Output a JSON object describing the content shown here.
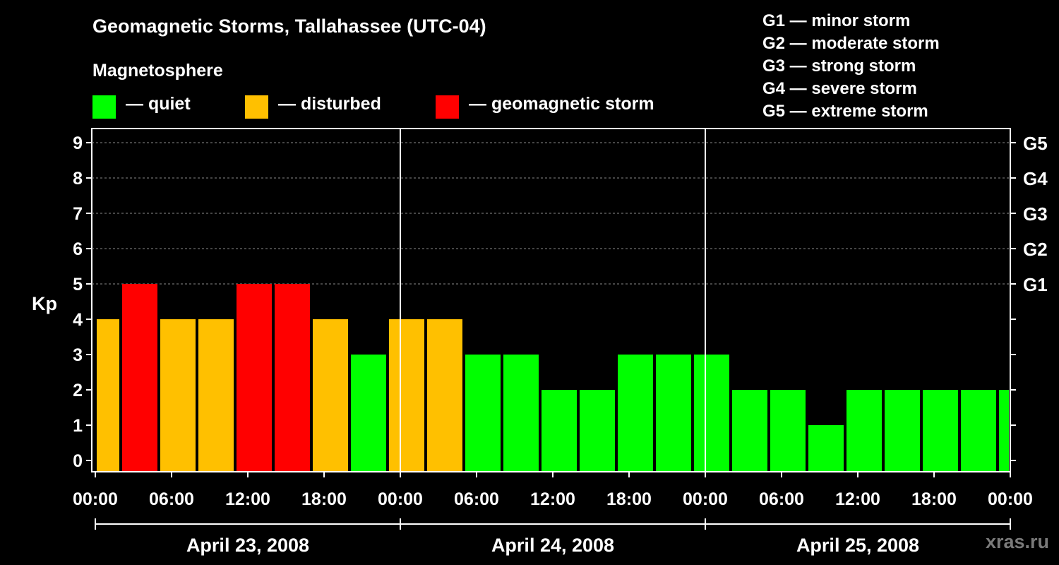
{
  "header": {
    "title": "Geomagnetic Storms, Tallahassee (UTC-04)",
    "subtitle": "Magnetosphere"
  },
  "legend": [
    {
      "label": "— quiet",
      "color": "#00ff00"
    },
    {
      "label": "— disturbed",
      "color": "#ffc000"
    },
    {
      "label": "— geomagnetic storm",
      "color": "#ff0000"
    }
  ],
  "g_legend": [
    "G1 — minor storm",
    "G2 — moderate storm",
    "G3 — strong storm",
    "G4 — severe storm",
    "G5 — extreme storm"
  ],
  "credit": "xras.ru",
  "chart_data": {
    "type": "bar",
    "title": "Geomagnetic Storms, Tallahassee (UTC-04)",
    "ylabel": "Kp",
    "ylim": [
      0,
      9
    ],
    "y_ticks": [
      "0",
      "1",
      "2",
      "3",
      "4",
      "5",
      "6",
      "7",
      "8",
      "9"
    ],
    "right_ticks": [
      {
        "kp": 5,
        "label": "G1"
      },
      {
        "kp": 6,
        "label": "G2"
      },
      {
        "kp": 7,
        "label": "G3"
      },
      {
        "kp": 8,
        "label": "G4"
      },
      {
        "kp": 9,
        "label": "G5"
      }
    ],
    "x_tick_labels": [
      "00:00",
      "06:00",
      "12:00",
      "18:00",
      "00:00",
      "06:00",
      "12:00",
      "18:00",
      "00:00",
      "06:00",
      "12:00",
      "18:00",
      "00:00"
    ],
    "day_labels": [
      "April 23, 2008",
      "April 24, 2008",
      "April 25, 2008"
    ],
    "grid": true,
    "colors": {
      "quiet": "#00ff00",
      "disturbed": "#ffc000",
      "storm": "#ff0000"
    },
    "bars": [
      {
        "start": "April 23, 2008 00:00",
        "end": "April 23, 2008 02:00",
        "kp": 4
      },
      {
        "start": "April 23, 2008 02:00",
        "end": "April 23, 2008 05:00",
        "kp": 5
      },
      {
        "start": "April 23, 2008 05:00",
        "end": "April 23, 2008 08:00",
        "kp": 4
      },
      {
        "start": "April 23, 2008 08:00",
        "end": "April 23, 2008 11:00",
        "kp": 4
      },
      {
        "start": "April 23, 2008 11:00",
        "end": "April 23, 2008 14:00",
        "kp": 5
      },
      {
        "start": "April 23, 2008 14:00",
        "end": "April 23, 2008 17:00",
        "kp": 5
      },
      {
        "start": "April 23, 2008 17:00",
        "end": "April 23, 2008 20:00",
        "kp": 4
      },
      {
        "start": "April 23, 2008 20:00",
        "end": "April 23, 2008 23:00",
        "kp": 3
      },
      {
        "start": "April 23, 2008 23:00",
        "end": "April 24, 2008 02:00",
        "kp": 4
      },
      {
        "start": "April 24, 2008 02:00",
        "end": "April 24, 2008 05:00",
        "kp": 4
      },
      {
        "start": "April 24, 2008 05:00",
        "end": "April 24, 2008 08:00",
        "kp": 3
      },
      {
        "start": "April 24, 2008 08:00",
        "end": "April 24, 2008 11:00",
        "kp": 3
      },
      {
        "start": "April 24, 2008 11:00",
        "end": "April 24, 2008 14:00",
        "kp": 2
      },
      {
        "start": "April 24, 2008 14:00",
        "end": "April 24, 2008 17:00",
        "kp": 2
      },
      {
        "start": "April 24, 2008 17:00",
        "end": "April 24, 2008 20:00",
        "kp": 3
      },
      {
        "start": "April 24, 2008 20:00",
        "end": "April 24, 2008 23:00",
        "kp": 3
      },
      {
        "start": "April 24, 2008 23:00",
        "end": "April 25, 2008 02:00",
        "kp": 3
      },
      {
        "start": "April 25, 2008 02:00",
        "end": "April 25, 2008 05:00",
        "kp": 2
      },
      {
        "start": "April 25, 2008 05:00",
        "end": "April 25, 2008 08:00",
        "kp": 2
      },
      {
        "start": "April 25, 2008 08:00",
        "end": "April 25, 2008 11:00",
        "kp": 1
      },
      {
        "start": "April 25, 2008 11:00",
        "end": "April 25, 2008 14:00",
        "kp": 2
      },
      {
        "start": "April 25, 2008 14:00",
        "end": "April 25, 2008 17:00",
        "kp": 2
      },
      {
        "start": "April 25, 2008 17:00",
        "end": "April 25, 2008 20:00",
        "kp": 2
      },
      {
        "start": "April 25, 2008 20:00",
        "end": "April 25, 2008 23:00",
        "kp": 2
      },
      {
        "start": "April 25, 2008 23:00",
        "end": "April 26, 2008 00:00",
        "kp": 2
      }
    ]
  }
}
